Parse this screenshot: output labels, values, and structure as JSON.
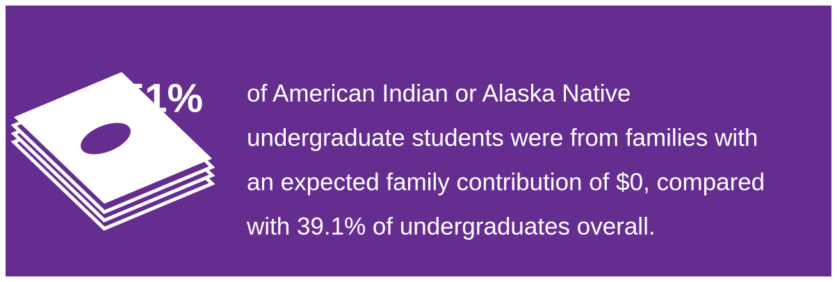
{
  "stat": "51%",
  "text_lines": [
    "of American Indian or Alaska Native",
    "undergraduate students were from families with",
    "an expected family contribution of $0, compared",
    "with 39.1% of undergraduates overall."
  ]
}
